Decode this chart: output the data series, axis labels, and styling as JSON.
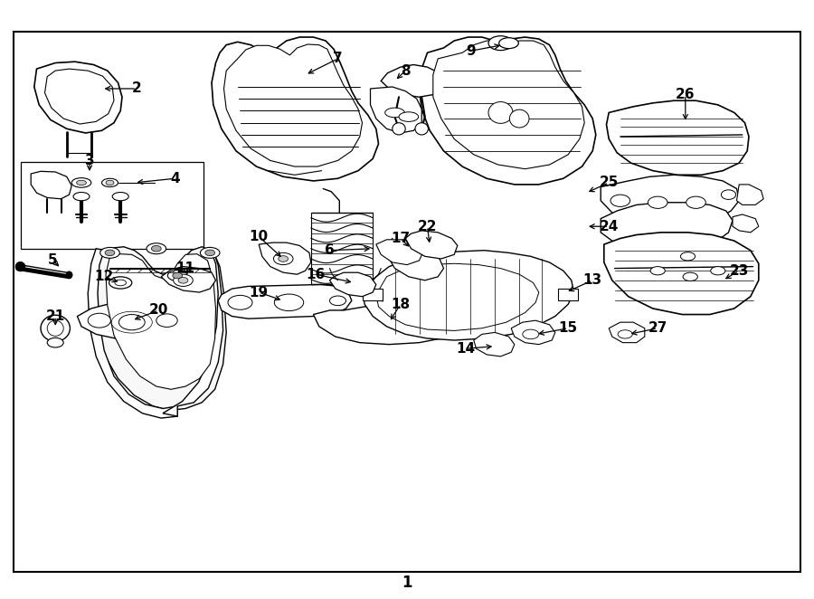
{
  "bg_color": "#ffffff",
  "border_color": "#000000",
  "fig_width": 9.0,
  "fig_height": 6.62,
  "bottom_label": "1"
}
